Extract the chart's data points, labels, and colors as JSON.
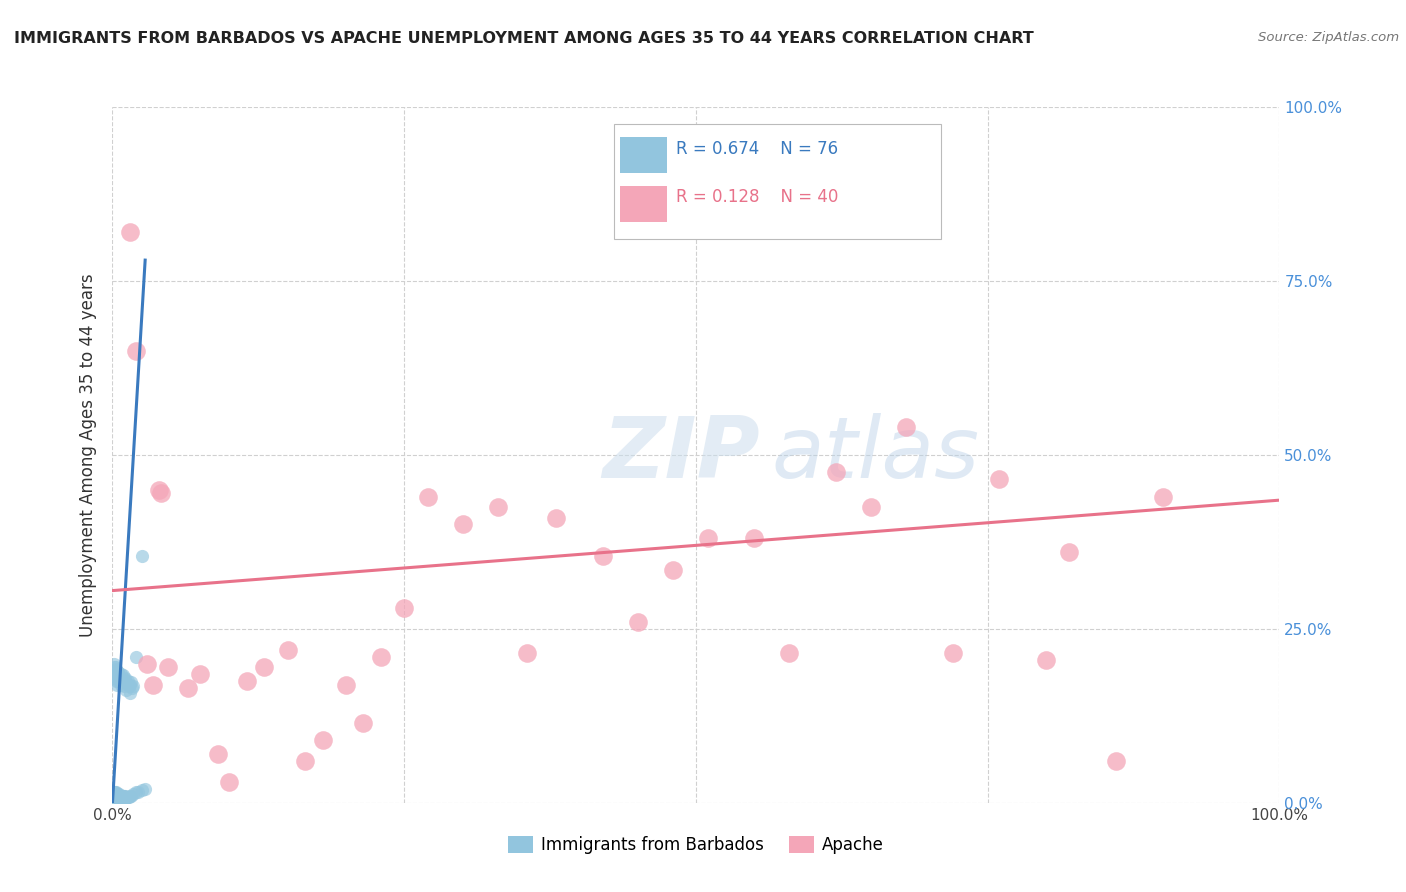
{
  "title": "IMMIGRANTS FROM BARBADOS VS APACHE UNEMPLOYMENT AMONG AGES 35 TO 44 YEARS CORRELATION CHART",
  "source": "Source: ZipAtlas.com",
  "ylabel_label": "Unemployment Among Ages 35 to 44 years",
  "legend_label_1": "Immigrants from Barbados",
  "legend_label_2": "Apache",
  "r1": "0.674",
  "n1": "76",
  "r2": "0.128",
  "n2": "40",
  "color_blue": "#92c5de",
  "color_pink": "#f4a6b8",
  "color_blue_line": "#3a7abf",
  "color_pink_line": "#e8728a",
  "watermark_zip": "ZIP",
  "watermark_atlas": "atlas",
  "blue_points_x": [
    0.001,
    0.001,
    0.001,
    0.001,
    0.001,
    0.002,
    0.002,
    0.002,
    0.002,
    0.003,
    0.003,
    0.003,
    0.003,
    0.004,
    0.004,
    0.004,
    0.005,
    0.005,
    0.005,
    0.006,
    0.006,
    0.006,
    0.007,
    0.007,
    0.008,
    0.008,
    0.009,
    0.009,
    0.01,
    0.01,
    0.011,
    0.011,
    0.012,
    0.013,
    0.014,
    0.015,
    0.016,
    0.018,
    0.02,
    0.022,
    0.025,
    0.028,
    0.001,
    0.002,
    0.003,
    0.004,
    0.005,
    0.006,
    0.007,
    0.008,
    0.01,
    0.012,
    0.014,
    0.016,
    0.018,
    0.002,
    0.003,
    0.004,
    0.005,
    0.007,
    0.009,
    0.011,
    0.013,
    0.015,
    0.017,
    0.001,
    0.002,
    0.003,
    0.004,
    0.006,
    0.008,
    0.01,
    0.012,
    0.015,
    0.02,
    0.025
  ],
  "blue_points_y": [
    0.005,
    0.008,
    0.01,
    0.012,
    0.015,
    0.005,
    0.008,
    0.012,
    0.015,
    0.005,
    0.008,
    0.01,
    0.015,
    0.005,
    0.008,
    0.012,
    0.005,
    0.008,
    0.012,
    0.005,
    0.008,
    0.012,
    0.005,
    0.008,
    0.005,
    0.01,
    0.005,
    0.01,
    0.005,
    0.01,
    0.005,
    0.01,
    0.008,
    0.008,
    0.008,
    0.01,
    0.01,
    0.012,
    0.015,
    0.015,
    0.018,
    0.02,
    0.18,
    0.185,
    0.175,
    0.17,
    0.175,
    0.18,
    0.17,
    0.175,
    0.178,
    0.172,
    0.168,
    0.173,
    0.168,
    0.195,
    0.192,
    0.19,
    0.188,
    0.185,
    0.183,
    0.18,
    0.175,
    0.17,
    0.165,
    0.2,
    0.195,
    0.19,
    0.185,
    0.18,
    0.175,
    0.168,
    0.162,
    0.158,
    0.21,
    0.355
  ],
  "pink_points_x": [
    0.015,
    0.02,
    0.03,
    0.035,
    0.04,
    0.042,
    0.048,
    0.065,
    0.075,
    0.09,
    0.1,
    0.115,
    0.13,
    0.15,
    0.165,
    0.18,
    0.2,
    0.215,
    0.23,
    0.25,
    0.27,
    0.3,
    0.33,
    0.355,
    0.38,
    0.42,
    0.45,
    0.48,
    0.51,
    0.55,
    0.58,
    0.62,
    0.65,
    0.68,
    0.72,
    0.76,
    0.8,
    0.82,
    0.86,
    0.9
  ],
  "pink_points_y": [
    0.82,
    0.65,
    0.2,
    0.17,
    0.45,
    0.445,
    0.195,
    0.165,
    0.185,
    0.07,
    0.03,
    0.175,
    0.195,
    0.22,
    0.06,
    0.09,
    0.17,
    0.115,
    0.21,
    0.28,
    0.44,
    0.4,
    0.425,
    0.215,
    0.41,
    0.355,
    0.26,
    0.335,
    0.38,
    0.38,
    0.215,
    0.475,
    0.425,
    0.54,
    0.215,
    0.465,
    0.205,
    0.36,
    0.06,
    0.44
  ],
  "blue_trendline_x": [
    0.0,
    0.028
  ],
  "blue_trendline_y": [
    0.0,
    0.78
  ],
  "pink_trendline_x": [
    0.0,
    1.0
  ],
  "pink_trendline_y": [
    0.305,
    0.435
  ],
  "xlim": [
    0.0,
    1.0
  ],
  "ylim": [
    0.0,
    1.0
  ],
  "xticks": [
    0.0,
    0.25,
    0.5,
    0.75,
    1.0
  ],
  "yticks": [
    0.0,
    0.25,
    0.5,
    0.75,
    1.0
  ],
  "ytick_labels_right": [
    "0.0%",
    "25.0%",
    "50.0%",
    "75.0%",
    "100.0%"
  ]
}
